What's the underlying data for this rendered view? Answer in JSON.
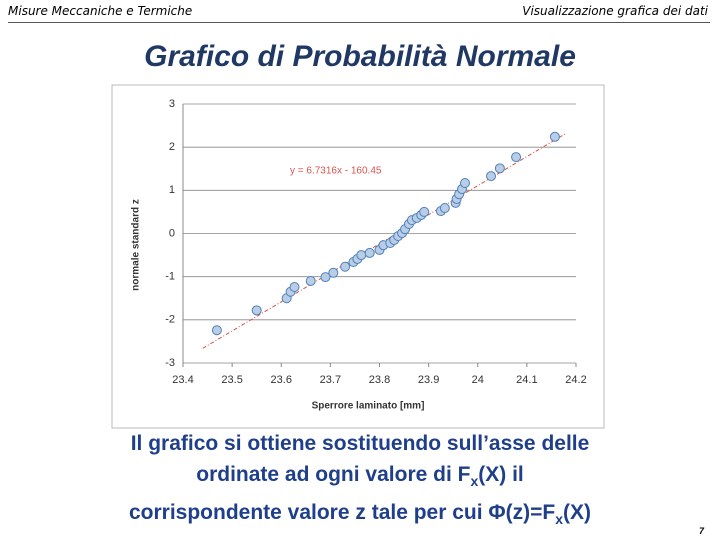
{
  "header": {
    "left": "Misure Meccaniche e Termiche",
    "right": "Visualizzazione grafica dei dati"
  },
  "slide_title": "Grafico di Probabilità Normale",
  "chart_data": {
    "type": "scatter",
    "x_label": "Sperrore laminato [mm]",
    "y_label": "normale standard z",
    "x": [
      23.469,
      23.55,
      23.611,
      23.619,
      23.627,
      23.66,
      23.69,
      23.706,
      23.73,
      23.747,
      23.755,
      23.763,
      23.78,
      23.8,
      23.808,
      23.822,
      23.83,
      23.838,
      23.846,
      23.852,
      23.86,
      23.866,
      23.876,
      23.885,
      23.891,
      23.925,
      23.933,
      23.955,
      23.957,
      23.962,
      23.968,
      23.974,
      24.027,
      24.045,
      24.078,
      24.157
    ],
    "values": [
      -2.24,
      -1.78,
      -1.5,
      -1.35,
      -1.24,
      -1.1,
      -1.01,
      -0.91,
      -0.77,
      -0.66,
      -0.59,
      -0.5,
      -0.45,
      -0.38,
      -0.27,
      -0.22,
      -0.15,
      -0.06,
      0.01,
      0.1,
      0.22,
      0.31,
      0.36,
      0.43,
      0.5,
      0.52,
      0.59,
      0.71,
      0.8,
      0.91,
      1.03,
      1.17,
      1.33,
      1.51,
      1.77,
      2.24
    ],
    "color": "#b9cde5",
    "xlim": [
      23.4,
      24.2
    ],
    "xticks": [
      23.4,
      23.5,
      23.6,
      23.7,
      23.8,
      23.9,
      24,
      24.1,
      24.2
    ],
    "ylim": [
      -3,
      3
    ],
    "yticks": [
      -3,
      -2,
      -1,
      0,
      1,
      2,
      3
    ],
    "grid": true,
    "trendline": {
      "slope": 6.7316,
      "intercept": -160.45,
      "label": "y = 6.7316x - 160.45",
      "color": "#d9534f"
    }
  },
  "caption": [
    "Il grafico si ottiene sostituendo sull’asse delle",
    "ordinate ad ogni valore di F",
    "x",
    "(X) il",
    "corrispondente valore z tale per cui Φ(z)=F",
    "x",
    "(X)"
  ],
  "page_number": "7"
}
